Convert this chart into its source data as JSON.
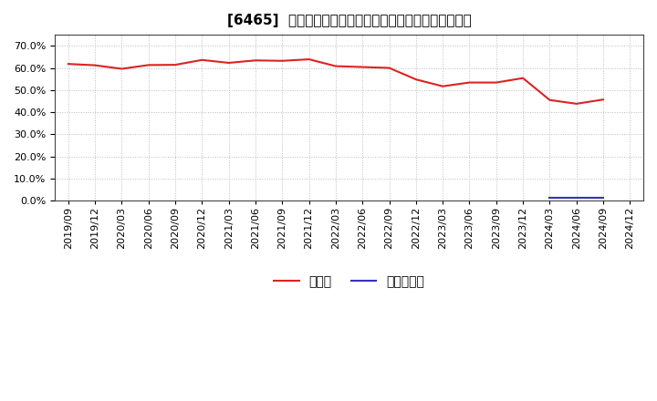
{
  "title": "[6465]  現預金、有利子負債の総資産に対する比率の推移",
  "x_labels": [
    "2019/09",
    "2019/12",
    "2020/03",
    "2020/06",
    "2020/09",
    "2020/12",
    "2021/03",
    "2021/06",
    "2021/09",
    "2021/12",
    "2022/03",
    "2022/06",
    "2022/09",
    "2022/12",
    "2023/03",
    "2023/06",
    "2023/09",
    "2023/12",
    "2024/03",
    "2024/06",
    "2024/09",
    "2024/12"
  ],
  "cash_values": [
    0.618,
    0.612,
    0.596,
    0.613,
    0.614,
    0.636,
    0.623,
    0.634,
    0.632,
    0.639,
    0.608,
    0.604,
    0.6,
    0.548,
    0.517,
    0.534,
    0.534,
    0.554,
    0.455,
    0.438,
    0.457,
    null
  ],
  "debt_values": [
    null,
    null,
    null,
    null,
    null,
    null,
    null,
    null,
    null,
    null,
    null,
    null,
    null,
    null,
    null,
    null,
    null,
    null,
    0.013,
    0.013,
    0.013,
    null
  ],
  "cash_color": "#dd2222",
  "debt_color": "#3333bb",
  "ylim": [
    0.0,
    0.75
  ],
  "yticks": [
    0.0,
    0.1,
    0.2,
    0.3,
    0.4,
    0.5,
    0.6,
    0.7
  ],
  "legend_cash": "現預金",
  "legend_debt": "有利子負債",
  "bg_color": "#ffffff",
  "plot_bg_color": "#ffffff",
  "grid_color": "#bbbbbb",
  "title_fontsize": 11,
  "tick_fontsize": 8,
  "legend_fontsize": 10
}
